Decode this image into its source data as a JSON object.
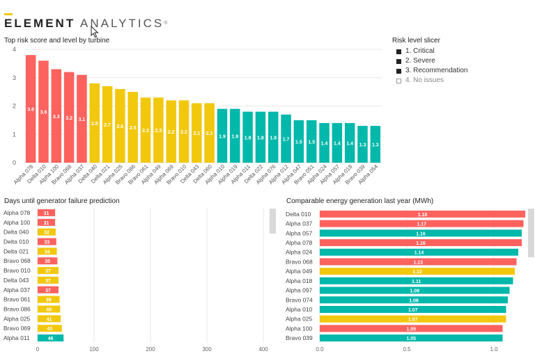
{
  "app": {
    "logo_brand": "ELEMENT",
    "logo_name": "ANALYTICS",
    "logo_mark": "®"
  },
  "colors": {
    "critical": "#fd625e",
    "severe": "#f2c80f",
    "recommendation": "#01b8aa",
    "grid": "#e8e8e8",
    "axis_text": "#666666"
  },
  "slicer": {
    "title": "Risk level slicer",
    "items": [
      {
        "label": "1. Critical",
        "checked": true
      },
      {
        "label": "2. Severe",
        "checked": true
      },
      {
        "label": "3. Recommendation",
        "checked": true
      },
      {
        "label": "4. No issues",
        "checked": false
      }
    ]
  },
  "chart_data": [
    {
      "type": "bar",
      "title": "Top risk score and level by turbine",
      "ylim": [
        0,
        4
      ],
      "yticks": [
        0,
        1,
        2,
        3,
        4
      ],
      "grid": true,
      "categories": [
        "Alpha 078",
        "Delta 010",
        "Alpha 100",
        "Bravo 068",
        "Alpha 037",
        "Delta 040",
        "Delta 021",
        "Alpha 025",
        "Bravo 086",
        "Bravo 061",
        "Alpha 049",
        "Alpha 069",
        "Bravo 010",
        "Delta 043",
        "Delta 060",
        "Alpha 010",
        "Alpha 019",
        "Alpha 011",
        "Delta 022",
        "Alpha 076",
        "Alpha 012",
        "Alpha 047",
        "Bravo 051",
        "Alpha 024",
        "Alpha 057",
        "Alpha 018",
        "Bravo 039",
        "Alpha 054"
      ],
      "values": [
        3.8,
        3.6,
        3.3,
        3.2,
        3.1,
        2.8,
        2.7,
        2.6,
        2.5,
        2.3,
        2.3,
        2.2,
        2.2,
        2.1,
        2.1,
        1.9,
        1.9,
        1.8,
        1.8,
        1.8,
        1.7,
        1.5,
        1.5,
        1.4,
        1.4,
        1.4,
        1.3,
        1.3
      ],
      "levels": [
        "critical",
        "critical",
        "critical",
        "critical",
        "critical",
        "severe",
        "severe",
        "severe",
        "severe",
        "severe",
        "severe",
        "severe",
        "severe",
        "severe",
        "severe",
        "recommendation",
        "recommendation",
        "recommendation",
        "recommendation",
        "recommendation",
        "recommendation",
        "recommendation",
        "recommendation",
        "recommendation",
        "recommendation",
        "recommendation",
        "recommendation",
        "recommendation"
      ]
    },
    {
      "type": "bar",
      "orientation": "horizontal",
      "title": "Days until generator failure prediction",
      "xlim": [
        0,
        400
      ],
      "xticks": [
        0,
        100,
        200,
        300,
        400
      ],
      "grid": true,
      "categories": [
        "Alpha 078",
        "Alpha 100",
        "Delta 040",
        "Delta 010",
        "Delta 021",
        "Bravo 068",
        "Bravo 010",
        "Delta 043",
        "Alpha 037",
        "Bravo 061",
        "Bravo 086",
        "Alpha 025",
        "Bravo 069",
        "Alpha 011"
      ],
      "values": [
        31,
        31,
        32,
        33,
        34,
        35,
        37,
        37,
        37,
        39,
        40,
        41,
        43,
        46
      ],
      "levels": [
        "critical",
        "critical",
        "severe",
        "critical",
        "severe",
        "critical",
        "severe",
        "severe",
        "critical",
        "severe",
        "severe",
        "severe",
        "severe",
        "recommendation"
      ]
    },
    {
      "type": "bar",
      "orientation": "horizontal",
      "title": "Comparable energy generation last year (MWh)",
      "xlim": [
        0,
        1.2
      ],
      "xticks": [
        "0.0",
        "0.5",
        "1.0"
      ],
      "grid": true,
      "categories": [
        "Delta 010",
        "Alpha 037",
        "Alpha 057",
        "Alpha 078",
        "Alpha 024",
        "Bravo 068",
        "Alpha 049",
        "Alpha 018",
        "Alpha 097",
        "Bravo 074",
        "Alpha 010",
        "Alpha 025",
        "Alpha 100",
        "Bravo 039"
      ],
      "values": [
        1.18,
        1.17,
        1.16,
        1.16,
        1.14,
        1.13,
        1.12,
        1.11,
        1.09,
        1.08,
        1.07,
        1.07,
        1.05,
        1.05
      ],
      "levels": [
        "critical",
        "critical",
        "recommendation",
        "critical",
        "recommendation",
        "critical",
        "severe",
        "recommendation",
        "recommendation",
        "recommendation",
        "recommendation",
        "severe",
        "critical",
        "recommendation"
      ]
    }
  ]
}
